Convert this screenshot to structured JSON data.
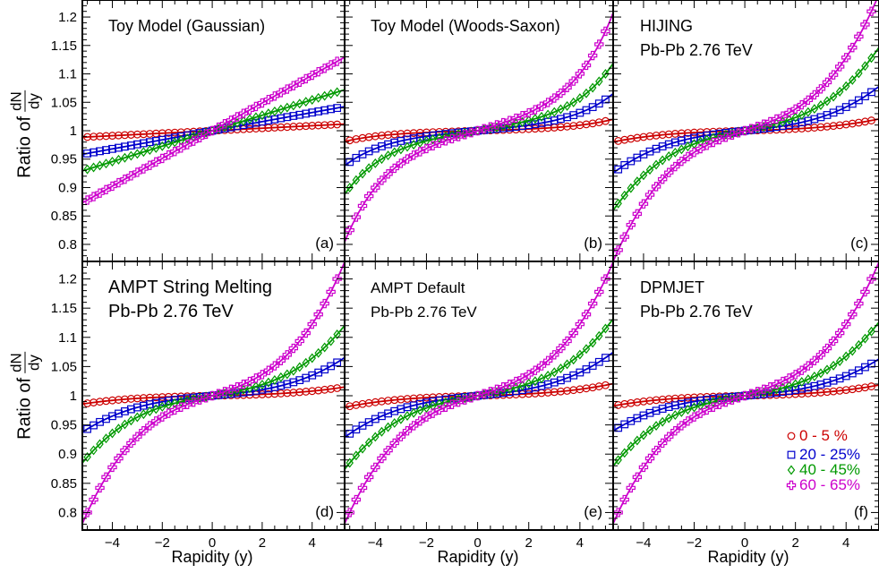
{
  "y_axis_label_prefix": "Ratio of",
  "y_axis_label_num": "dN",
  "y_axis_label_den": "dy",
  "x_axis_label": "Rapidity (y)",
  "colors": {
    "c0_5": "#cc0000",
    "c20_25": "#0000cc",
    "c40_45": "#009900",
    "c60_65": "#cc00cc"
  },
  "legend": [
    "0 - 5 %",
    "20 - 25%",
    "40 - 45%",
    "60 - 65%"
  ],
  "chart_data": [
    {
      "type": "scatter",
      "panel_label": "(a)",
      "title_lines": [
        "Toy Model (Gaussian)"
      ],
      "model": "linear",
      "xlim": [
        -5.2,
        5.3
      ],
      "ylim": [
        0.77,
        1.23
      ],
      "x_ticks": [
        -4,
        -2,
        0,
        2,
        4
      ],
      "y_ticks": [
        0.8,
        0.85,
        0.9,
        0.95,
        1,
        1.05,
        1.1,
        1.15,
        1.2
      ],
      "series": [
        {
          "name": "0 - 5 %",
          "y_at_x5": 1.011
        },
        {
          "name": "20 - 25%",
          "y_at_x5": 1.04
        },
        {
          "name": "40 - 45%",
          "y_at_x5": 1.068
        },
        {
          "name": "60 - 65%",
          "y_at_x5": 1.122
        }
      ]
    },
    {
      "type": "scatter",
      "panel_label": "(b)",
      "title_lines": [
        "Toy Model (Woods-Saxon)"
      ],
      "model": "ws",
      "xlim": [
        -5.2,
        5.3
      ],
      "ylim": [
        0.77,
        1.23
      ],
      "x_ticks": [
        -4,
        -2,
        0,
        2,
        4
      ],
      "y_ticks": [
        0.8,
        0.85,
        0.9,
        0.95,
        1,
        1.05,
        1.1,
        1.15,
        1.2
      ],
      "series": [
        {
          "name": "0 - 5 %",
          "y_at_x5": 1.017
        },
        {
          "name": "20 - 25%",
          "y_at_x5": 1.055
        },
        {
          "name": "40 - 45%",
          "y_at_x5": 1.1
        },
        {
          "name": "60 - 65%",
          "y_at_x5": 1.175
        }
      ]
    },
    {
      "type": "scatter",
      "panel_label": "(c)",
      "title_lines": [
        "HIJING",
        "Pb-Pb 2.76 TeV"
      ],
      "model": "cubic",
      "xlim": [
        -5.2,
        5.3
      ],
      "ylim": [
        0.77,
        1.23
      ],
      "x_ticks": [
        -4,
        -2,
        0,
        2,
        4
      ],
      "y_ticks": [
        0.8,
        0.85,
        0.9,
        0.95,
        1,
        1.05,
        1.1,
        1.15,
        1.2
      ],
      "series": [
        {
          "name": "0 - 5 %",
          "y_at_x5": 1.018
        },
        {
          "name": "20 - 25%",
          "y_at_x5": 1.068
        },
        {
          "name": "40 - 45%",
          "y_at_x5": 1.128
        },
        {
          "name": "60 - 65%",
          "y_at_x5": 1.21
        }
      ]
    },
    {
      "type": "scatter",
      "panel_label": "(d)",
      "title_lines": [
        "AMPT String Melting",
        "Pb-Pb 2.76 TeV"
      ],
      "model": "cubic",
      "xlim": [
        -5.2,
        5.3
      ],
      "ylim": [
        0.77,
        1.23
      ],
      "x_ticks": [
        -4,
        -2,
        0,
        2,
        4
      ],
      "y_ticks": [
        0.8,
        0.85,
        0.9,
        0.95,
        1,
        1.05,
        1.1,
        1.15,
        1.2
      ],
      "series": [
        {
          "name": "0 - 5 %",
          "y_at_x5": 1.013
        },
        {
          "name": "20 - 25%",
          "y_at_x5": 1.057
        },
        {
          "name": "40 - 45%",
          "y_at_x5": 1.105
        },
        {
          "name": "60 - 65%",
          "y_at_x5": 1.2
        }
      ]
    },
    {
      "type": "scatter",
      "panel_label": "(e)",
      "title_lines": [
        "AMPT Default",
        "Pb-Pb 2.76 TeV"
      ],
      "model": "cubic",
      "xlim": [
        -5.2,
        5.3
      ],
      "ylim": [
        0.77,
        1.23
      ],
      "x_ticks": [
        -4,
        -2,
        0,
        2,
        4
      ],
      "y_ticks": [
        0.8,
        0.85,
        0.9,
        0.95,
        1,
        1.05,
        1.1,
        1.15,
        1.2
      ],
      "series": [
        {
          "name": "0 - 5 %",
          "y_at_x5": 1.018
        },
        {
          "name": "20 - 25%",
          "y_at_x5": 1.065
        },
        {
          "name": "40 - 45%",
          "y_at_x5": 1.115
        },
        {
          "name": "60 - 65%",
          "y_at_x5": 1.2
        }
      ]
    },
    {
      "type": "scatter",
      "panel_label": "(f)",
      "title_lines": [
        "DPMJET",
        "Pb-Pb 2.76 TeV"
      ],
      "model": "cubic",
      "xlim": [
        -5.2,
        5.3
      ],
      "ylim": [
        0.77,
        1.23
      ],
      "x_ticks": [
        -4,
        -2,
        0,
        2,
        4
      ],
      "y_ticks": [
        0.8,
        0.85,
        0.9,
        0.95,
        1,
        1.05,
        1.1,
        1.15,
        1.2
      ],
      "series": [
        {
          "name": "0 - 5 %",
          "y_at_x5": 1.016
        },
        {
          "name": "20 - 25%",
          "y_at_x5": 1.055
        },
        {
          "name": "40 - 45%",
          "y_at_x5": 1.11
        },
        {
          "name": "60 - 65%",
          "y_at_x5": 1.2
        }
      ]
    }
  ]
}
